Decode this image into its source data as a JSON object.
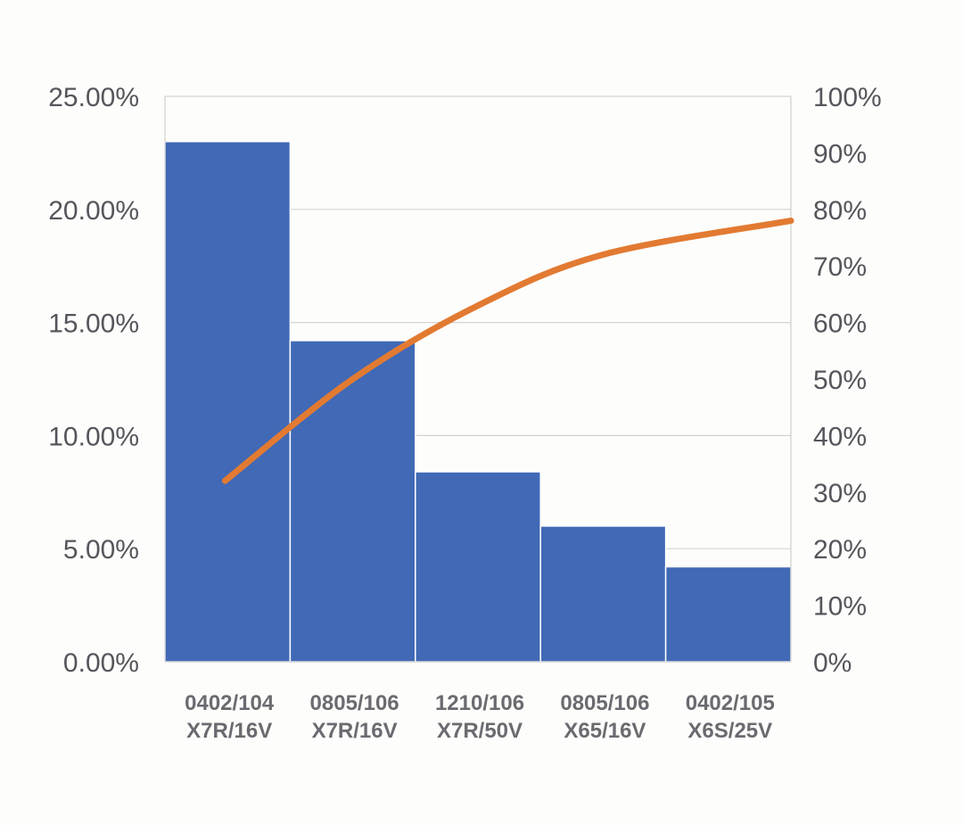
{
  "chart_data": {
    "type": "bar",
    "title": "",
    "xlabel": "",
    "ylabel": "",
    "categories": [
      [
        "0402/104",
        "X7R/16V"
      ],
      [
        "0805/106",
        "X7R/16V"
      ],
      [
        "1210/106",
        "X7R/50V"
      ],
      [
        "0805/106",
        "X65/16V"
      ],
      [
        "0402/105",
        "X6S/25V"
      ]
    ],
    "series": [
      {
        "type": "bar",
        "axis": "left",
        "values": [
          23.0,
          14.2,
          8.4,
          6.0,
          4.2
        ],
        "color": "#4169b5"
      },
      {
        "type": "line",
        "axis": "right",
        "values": [
          32,
          50,
          63,
          72,
          78
        ],
        "color": "#e27a32"
      }
    ],
    "y_left": {
      "lim": [
        0,
        25
      ],
      "ticks": [
        "0.00%",
        "5.00%",
        "10.00%",
        "15.00%",
        "20.00%",
        "25.00%"
      ]
    },
    "y_right": {
      "lim": [
        0,
        100
      ],
      "ticks": [
        "0%",
        "10%",
        "20%",
        "30%",
        "40%",
        "50%",
        "60%",
        "70%",
        "80%",
        "90%",
        "100%"
      ]
    },
    "grid": true,
    "legend": "none"
  }
}
